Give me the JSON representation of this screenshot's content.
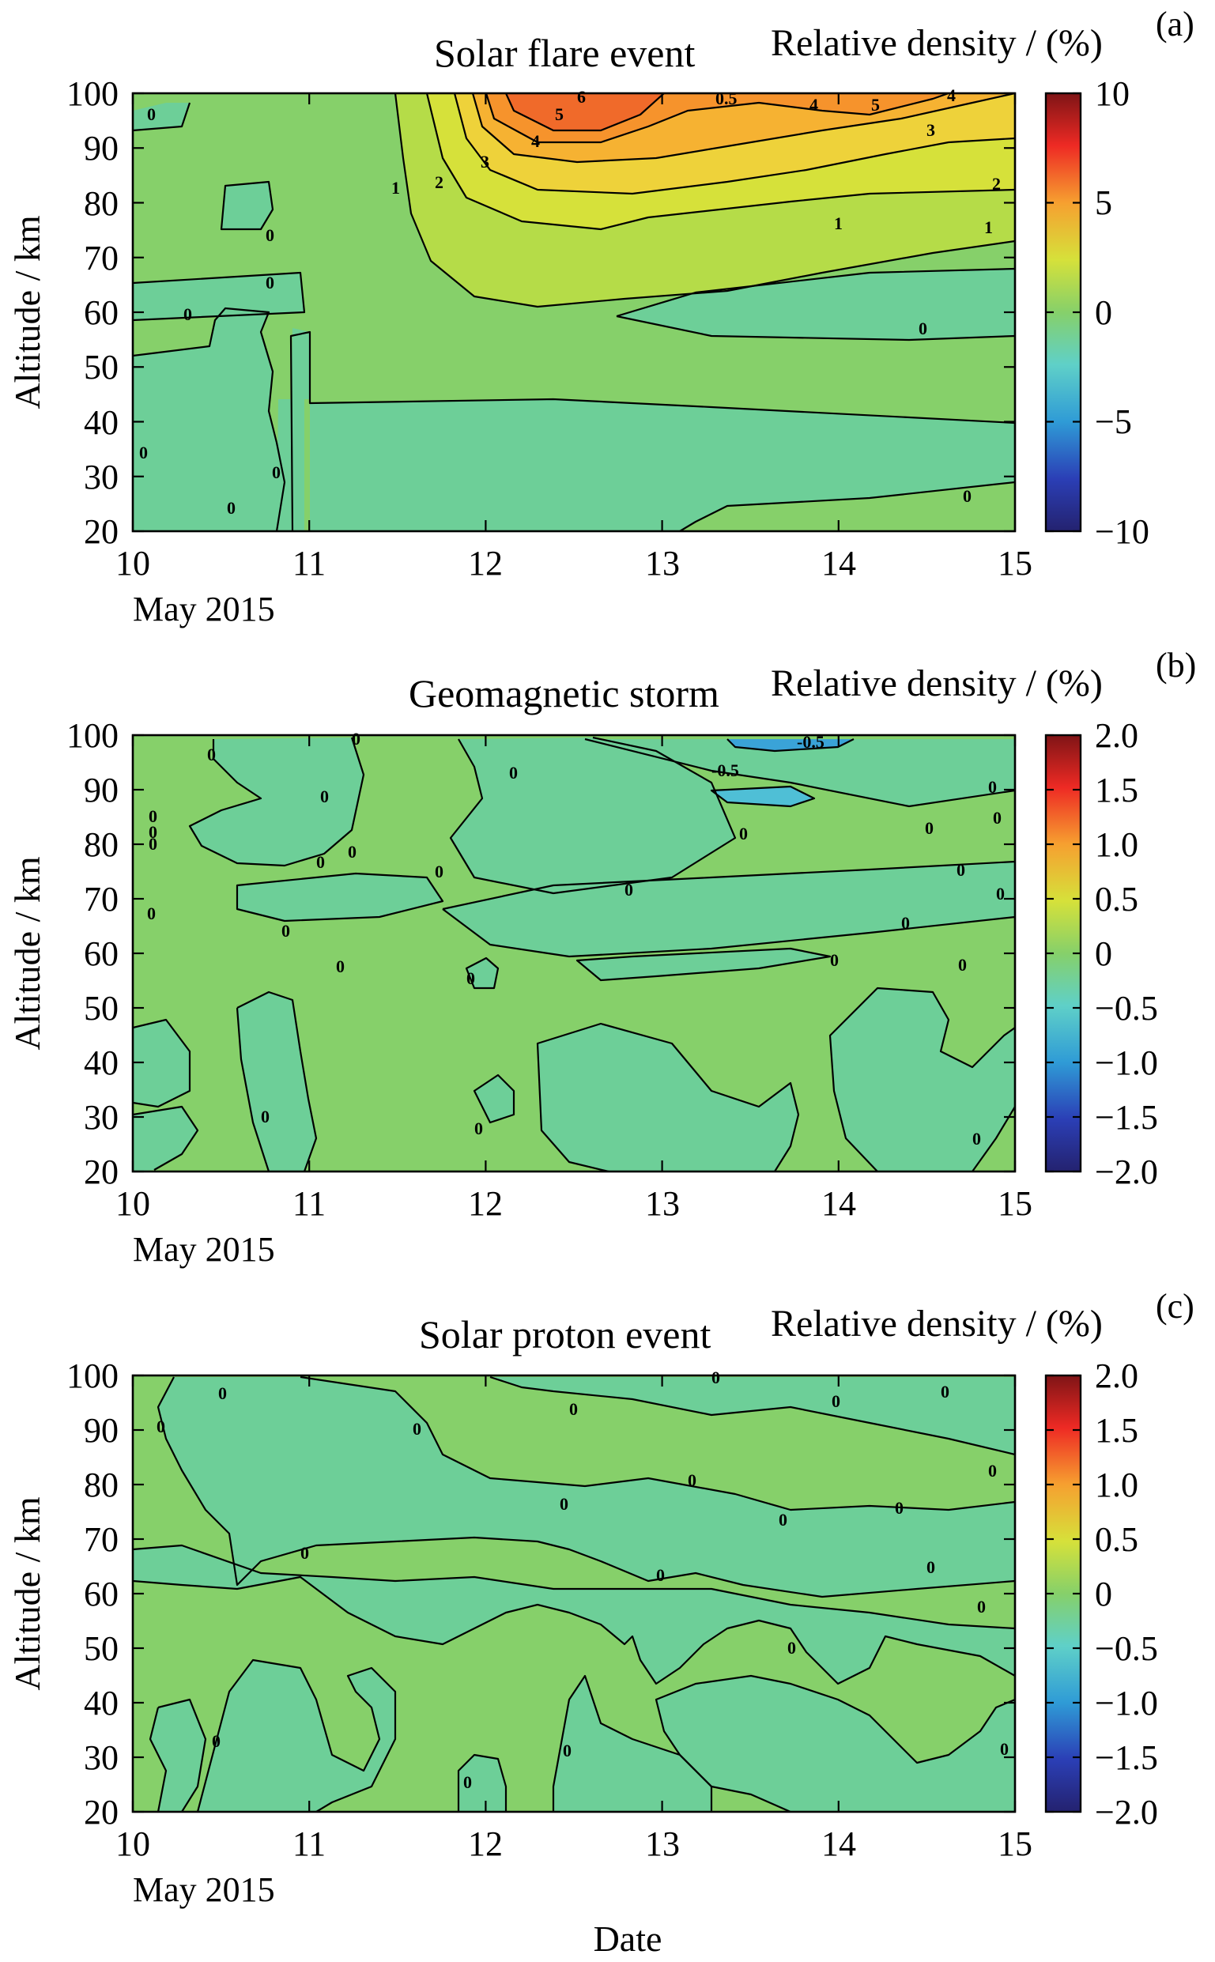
{
  "figure": {
    "xlabel": "Date",
    "x_sublabel": "May 2015",
    "colorbar_label": "Relative density / (%)"
  },
  "chart_data": [
    {
      "panel_tag": "(a)",
      "title": "Solar flare event",
      "type": "heatmap",
      "ylabel": "Altitude / km",
      "xlim": [
        10,
        15
      ],
      "ylim": [
        20,
        100
      ],
      "x_ticks": [
        "10",
        "11",
        "12",
        "13",
        "14",
        "15"
      ],
      "y_ticks": [
        "20",
        "30",
        "40",
        "50",
        "60",
        "70",
        "80",
        "90",
        "100"
      ],
      "colorbar": {
        "range": [
          -10,
          10
        ],
        "ticks": [
          "10",
          "5",
          "0",
          "−5",
          "−10"
        ],
        "tick_values": [
          10,
          5,
          0,
          -5,
          -10
        ]
      },
      "contour_labels": [
        "0",
        "0",
        "0",
        "0",
        "0",
        "0",
        "0",
        "0",
        "0",
        "1",
        "1",
        "1",
        "2",
        "2",
        "3",
        "3",
        "4",
        "4",
        "4",
        "5",
        "5",
        "6",
        "0.5"
      ],
      "contour_label_values": [
        0,
        0,
        0,
        0,
        0,
        0,
        0,
        0,
        0,
        1,
        1,
        1,
        2,
        2,
        3,
        3,
        4,
        4,
        4,
        5,
        5,
        6,
        0.5
      ]
    },
    {
      "panel_tag": "(b)",
      "title": "Geomagnetic storm",
      "type": "heatmap",
      "ylabel": "Altitude / km",
      "xlim": [
        10,
        15
      ],
      "ylim": [
        20,
        100
      ],
      "x_ticks": [
        "10",
        "11",
        "12",
        "13",
        "14",
        "15"
      ],
      "y_ticks": [
        "20",
        "30",
        "40",
        "50",
        "60",
        "70",
        "80",
        "90",
        "100"
      ],
      "colorbar": {
        "range": [
          -2,
          2
        ],
        "ticks": [
          "2.0",
          "1.5",
          "1.0",
          "0.5",
          "0",
          "−0.5",
          "−1.0",
          "−1.5",
          "−2.0"
        ],
        "tick_values": [
          2.0,
          1.5,
          1.0,
          0.5,
          0,
          -0.5,
          -1.0,
          -1.5,
          -2.0
        ]
      },
      "contour_labels": [
        "0",
        "0",
        "0",
        "0",
        "0",
        "0",
        "0",
        "0",
        "0",
        "0",
        "0",
        "0",
        "0",
        "0",
        "0",
        "0",
        "0",
        "0",
        "0",
        "0",
        "0",
        "0",
        "0",
        "0",
        "0",
        "0",
        "0",
        "-0.5",
        "-0.5"
      ],
      "contour_label_values": [
        0,
        0,
        0,
        0,
        0,
        0,
        0,
        0,
        0,
        0,
        0,
        0,
        0,
        0,
        0,
        0,
        0,
        0,
        0,
        0,
        0,
        0,
        0,
        0,
        0,
        0,
        0,
        -0.5,
        -0.5
      ]
    },
    {
      "panel_tag": "(c)",
      "title": "Solar proton event",
      "type": "heatmap",
      "ylabel": "Altitude / km",
      "xlim": [
        10,
        15
      ],
      "ylim": [
        20,
        100
      ],
      "x_ticks": [
        "10",
        "11",
        "12",
        "13",
        "14",
        "15"
      ],
      "y_ticks": [
        "20",
        "30",
        "40",
        "50",
        "60",
        "70",
        "80",
        "90",
        "100"
      ],
      "colorbar": {
        "range": [
          -2,
          2
        ],
        "ticks": [
          "2.0",
          "1.5",
          "1.0",
          "0.5",
          "0",
          "−0.5",
          "−1.0",
          "−1.5",
          "−2.0"
        ],
        "tick_values": [
          2.0,
          1.5,
          1.0,
          0.5,
          0,
          -0.5,
          -1.0,
          -1.5,
          -2.0
        ]
      },
      "contour_labels": [
        "0",
        "0",
        "0",
        "0",
        "0",
        "0",
        "0",
        "0",
        "0",
        "0",
        "0",
        "0",
        "0",
        "0",
        "0",
        "0",
        "0",
        "0",
        "0",
        "0",
        "0"
      ],
      "contour_label_values": [
        0,
        0,
        0,
        0,
        0,
        0,
        0,
        0,
        0,
        0,
        0,
        0,
        0,
        0,
        0,
        0,
        0,
        0,
        0,
        0,
        0
      ]
    }
  ]
}
